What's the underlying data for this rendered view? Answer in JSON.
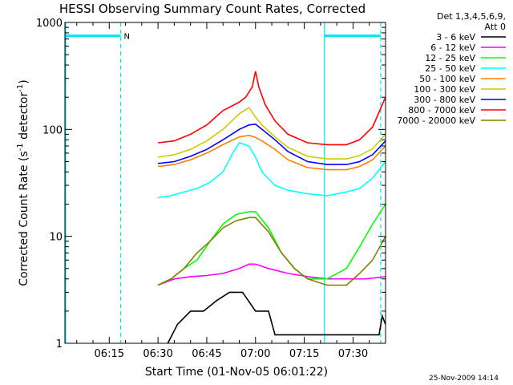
{
  "chart_data": {
    "type": "line",
    "title": "HESSI Observing Summary Count Rates, Corrected",
    "xlabel": "Start Time (01-Nov-05 06:01:22)",
    "ylabel_main": "Corrected Count Rate (s",
    "ylabel_sup1": "-1",
    "ylabel_mid": " detector",
    "ylabel_sup2": "-1",
    "ylabel_end": ")",
    "y_scale": "log",
    "ylim": [
      1,
      1000
    ],
    "xlim_min": [
      361.37,
      460
    ],
    "x_ticks": [
      {
        "min": 375,
        "label": "06:15"
      },
      {
        "min": 390,
        "label": "06:30"
      },
      {
        "min": 405,
        "label": "06:45"
      },
      {
        "min": 420,
        "label": "07:00"
      },
      {
        "min": 435,
        "label": "07:15"
      },
      {
        "min": 450,
        "label": "07:30"
      }
    ],
    "y_ticks": [
      {
        "value": 1,
        "label": "1"
      },
      {
        "value": 10,
        "label": "10"
      },
      {
        "value": 100,
        "label": "100"
      },
      {
        "value": 1000,
        "label": "1000"
      }
    ],
    "legend_header": [
      "Det 1,3,4,5,6,9,",
      "Att 0"
    ],
    "timestamp": "25-Nov-2009 14:14",
    "night_marker_label": "N",
    "annotations": {
      "night_bar": {
        "y": 750,
        "segments": [
          [
            361.37,
            378.5
          ],
          [
            441.2,
            458.5
          ]
        ]
      },
      "solid_lines": [
        361.6,
        441.2
      ],
      "dashed_lines": [
        378.5,
        458.5
      ]
    },
    "series": [
      {
        "name": "3 - 6 keV",
        "color": "#000000",
        "x": [
          393,
          396,
          400,
          404,
          408,
          412,
          416,
          420,
          424,
          426,
          458,
          459,
          460
        ],
        "y": [
          1,
          1.5,
          2,
          2,
          2.5,
          3,
          3,
          2,
          2,
          1.2,
          1.2,
          1.8,
          1.5
        ]
      },
      {
        "name": "6 - 12 keV",
        "color": "#ff00ff",
        "x": [
          390,
          395,
          400,
          405,
          410,
          415,
          418,
          420,
          424,
          430,
          436,
          442,
          448,
          454,
          460
        ],
        "y": [
          3.5,
          4.0,
          4.2,
          4.3,
          4.5,
          5.0,
          5.5,
          5.5,
          5.0,
          4.5,
          4.2,
          4.0,
          4.0,
          4.0,
          4.2
        ]
      },
      {
        "name": "12 - 25 keV",
        "color": "#00ff00",
        "x": [
          390,
          394,
          398,
          402,
          406,
          410,
          414,
          418,
          420,
          424,
          428,
          432,
          436,
          442,
          448,
          452,
          456,
          460
        ],
        "y": [
          3.5,
          4,
          5,
          6,
          9,
          13,
          16,
          17,
          17,
          12,
          7,
          5,
          4,
          4,
          5,
          8,
          13,
          20
        ]
      },
      {
        "name": "25 - 50 keV",
        "color": "#00ffff",
        "x": [
          390,
          394,
          398,
          402,
          406,
          410,
          413,
          415,
          418,
          420,
          422,
          426,
          430,
          436,
          442,
          448,
          452,
          456,
          460
        ],
        "y": [
          23,
          24,
          26,
          28,
          32,
          40,
          60,
          75,
          70,
          55,
          40,
          30,
          27,
          25,
          24,
          26,
          28,
          35,
          50
        ]
      },
      {
        "name": "50 - 100 keV",
        "color": "#ff8000",
        "x": [
          390,
          395,
          400,
          405,
          410,
          415,
          418,
          420,
          422,
          426,
          430,
          436,
          442,
          448,
          452,
          456,
          460
        ],
        "y": [
          45,
          47,
          52,
          60,
          72,
          85,
          88,
          84,
          78,
          65,
          52,
          44,
          42,
          42,
          45,
          52,
          70
        ]
      },
      {
        "name": "100 - 300 keV",
        "color": "#cccc00",
        "x": [
          390,
          395,
          400,
          405,
          410,
          415,
          418,
          420,
          422,
          426,
          430,
          436,
          442,
          448,
          452,
          456,
          460
        ],
        "y": [
          55,
          58,
          65,
          78,
          100,
          140,
          160,
          130,
          110,
          85,
          68,
          56,
          53,
          53,
          57,
          66,
          90
        ]
      },
      {
        "name": "300 - 800 keV",
        "color": "#0000ff",
        "x": [
          390,
          395,
          400,
          405,
          410,
          415,
          418,
          420,
          422,
          426,
          430,
          436,
          442,
          448,
          452,
          456,
          460
        ],
        "y": [
          48,
          50,
          56,
          65,
          80,
          100,
          110,
          112,
          100,
          80,
          62,
          50,
          47,
          47,
          50,
          58,
          78
        ]
      },
      {
        "name": "800 - 7000 keV",
        "color": "#ff0000",
        "x": [
          390,
          395,
          400,
          405,
          410,
          415,
          417,
          419,
          420,
          421,
          423,
          426,
          430,
          436,
          442,
          448,
          452,
          456,
          460
        ],
        "y": [
          75,
          78,
          90,
          110,
          150,
          180,
          200,
          250,
          350,
          250,
          170,
          120,
          90,
          75,
          72,
          72,
          80,
          105,
          200
        ]
      },
      {
        "name": "7000 - 20000 keV",
        "color": "#808000",
        "x": [
          390,
          394,
          398,
          402,
          406,
          410,
          414,
          418,
          420,
          424,
          428,
          432,
          436,
          442,
          448,
          452,
          456,
          460
        ],
        "y": [
          3.5,
          4,
          5,
          7,
          9,
          12,
          14,
          15,
          15,
          11,
          7,
          5,
          4,
          3.5,
          3.5,
          4.5,
          6,
          10
        ]
      }
    ]
  }
}
